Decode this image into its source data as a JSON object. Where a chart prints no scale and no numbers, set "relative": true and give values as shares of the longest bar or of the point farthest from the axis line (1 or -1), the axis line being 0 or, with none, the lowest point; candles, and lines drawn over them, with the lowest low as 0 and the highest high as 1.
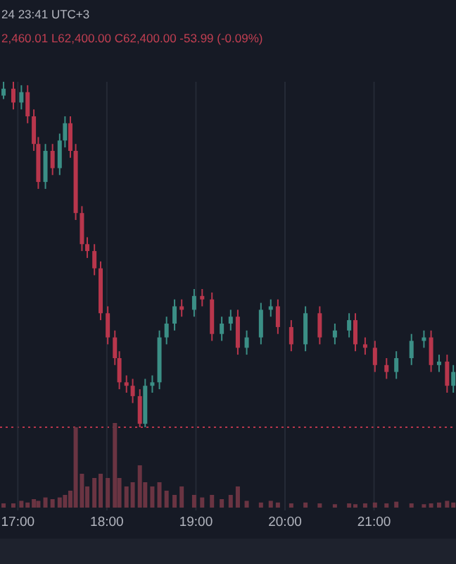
{
  "chart_data": [
    {
      "type": "candlestick",
      "relative": true,
      "grid": "x",
      "tick_labels": false,
      "annotations": [
        "24 23:41 UTC+3",
        "2,460.01 L62,400.00 C62,400.00 -53.99 (-0.09%)"
      ],
      "xlim": [
        16.8,
        21.92
      ],
      "xticks": [
        {
          "value": 17,
          "label": null
        },
        {
          "value": 18,
          "label": null
        },
        {
          "value": 19,
          "label": null
        },
        {
          "value": 20,
          "label": null
        },
        {
          "value": 21,
          "label": null
        }
      ],
      "ref_lines": [
        {
          "axis": "y",
          "value": 0,
          "color": "#b8364c",
          "line_style": "dotted"
        }
      ],
      "x": [
        16.84,
        16.95,
        17.04,
        17.11,
        17.18,
        17.23,
        17.31,
        17.39,
        17.47,
        17.53,
        17.59,
        17.65,
        17.72,
        17.78,
        17.86,
        17.93,
        18.01,
        18.09,
        18.14,
        18.22,
        18.29,
        18.37,
        18.43,
        18.51,
        18.59,
        18.67,
        18.76,
        18.84,
        18.98,
        19.07,
        19.18,
        19.29,
        19.39,
        19.47,
        19.57,
        19.73,
        19.84,
        19.92,
        20.07,
        20.23,
        20.39,
        20.56,
        20.72,
        20.79,
        20.9,
        21.01,
        21.14,
        21.25,
        21.42,
        21.56,
        21.64,
        21.73,
        21.82,
        21.89
      ],
      "ohlc": [
        [
          0.96,
          1.0,
          0.95,
          0.98
        ],
        [
          0.98,
          1.0,
          0.92,
          0.94
        ],
        [
          0.94,
          0.99,
          0.92,
          0.97
        ],
        [
          0.97,
          0.99,
          0.88,
          0.9
        ],
        [
          0.9,
          0.92,
          0.8,
          0.82
        ],
        [
          0.82,
          0.84,
          0.69,
          0.71
        ],
        [
          0.71,
          0.82,
          0.69,
          0.8
        ],
        [
          0.8,
          0.82,
          0.73,
          0.75
        ],
        [
          0.75,
          0.85,
          0.73,
          0.83
        ],
        [
          0.83,
          0.9,
          0.81,
          0.88
        ],
        [
          0.88,
          0.9,
          0.78,
          0.8
        ],
        [
          0.8,
          0.82,
          0.6,
          0.62
        ],
        [
          0.62,
          0.64,
          0.51,
          0.53
        ],
        [
          0.53,
          0.55,
          0.49,
          0.51
        ],
        [
          0.51,
          0.53,
          0.44,
          0.46
        ],
        [
          0.46,
          0.48,
          0.31,
          0.33
        ],
        [
          0.33,
          0.35,
          0.24,
          0.26
        ],
        [
          0.26,
          0.28,
          0.18,
          0.2
        ],
        [
          0.2,
          0.22,
          0.11,
          0.13
        ],
        [
          0.13,
          0.15,
          0.1,
          0.12
        ],
        [
          0.12,
          0.14,
          0.07,
          0.09
        ],
        [
          0.09,
          0.11,
          0.0,
          0.01
        ],
        [
          0.01,
          0.14,
          0.0,
          0.12
        ],
        [
          0.12,
          0.15,
          0.1,
          0.13
        ],
        [
          0.13,
          0.28,
          0.11,
          0.26
        ],
        [
          0.26,
          0.32,
          0.24,
          0.3
        ],
        [
          0.3,
          0.37,
          0.28,
          0.35
        ],
        [
          0.35,
          0.37,
          0.32,
          0.34
        ],
        [
          0.34,
          0.4,
          0.32,
          0.38
        ],
        [
          0.38,
          0.4,
          0.35,
          0.37
        ],
        [
          0.37,
          0.39,
          0.25,
          0.27
        ],
        [
          0.27,
          0.32,
          0.25,
          0.3
        ],
        [
          0.3,
          0.34,
          0.28,
          0.32
        ],
        [
          0.32,
          0.34,
          0.21,
          0.23
        ],
        [
          0.23,
          0.28,
          0.21,
          0.26
        ],
        [
          0.26,
          0.36,
          0.24,
          0.34
        ],
        [
          0.34,
          0.37,
          0.32,
          0.35
        ],
        [
          0.35,
          0.37,
          0.27,
          0.29
        ],
        [
          0.29,
          0.31,
          0.22,
          0.24
        ],
        [
          0.24,
          0.35,
          0.22,
          0.33
        ],
        [
          0.33,
          0.35,
          0.24,
          0.26
        ],
        [
          0.26,
          0.3,
          0.24,
          0.28
        ],
        [
          0.28,
          0.33,
          0.26,
          0.31
        ],
        [
          0.31,
          0.33,
          0.22,
          0.24
        ],
        [
          0.24,
          0.26,
          0.21,
          0.23
        ],
        [
          0.23,
          0.25,
          0.16,
          0.18
        ],
        [
          0.18,
          0.2,
          0.14,
          0.16
        ],
        [
          0.16,
          0.22,
          0.14,
          0.2
        ],
        [
          0.2,
          0.27,
          0.18,
          0.25
        ],
        [
          0.25,
          0.28,
          0.23,
          0.26
        ],
        [
          0.26,
          0.28,
          0.16,
          0.18
        ],
        [
          0.18,
          0.21,
          0.16,
          0.19
        ],
        [
          0.19,
          0.21,
          0.1,
          0.12
        ],
        [
          0.12,
          0.18,
          0.1,
          0.16
        ]
      ],
      "colors": [
        "#3b8f86",
        "#b8364c",
        "#3b8f86",
        "#b8364c",
        "#b8364c",
        "#b8364c",
        "#3b8f86",
        "#b8364c",
        "#3b8f86",
        "#3b8f86",
        "#b8364c",
        "#b8364c",
        "#b8364c",
        "#b8364c",
        "#b8364c",
        "#b8364c",
        "#b8364c",
        "#b8364c",
        "#b8364c",
        "#b8364c",
        "#b8364c",
        "#b8364c",
        "#3b8f86",
        "#3b8f86",
        "#3b8f86",
        "#3b8f86",
        "#3b8f86",
        "#b8364c",
        "#3b8f86",
        "#b8364c",
        "#b8364c",
        "#3b8f86",
        "#3b8f86",
        "#b8364c",
        "#3b8f86",
        "#3b8f86",
        "#3b8f86",
        "#b8364c",
        "#b8364c",
        "#3b8f86",
        "#b8364c",
        "#3b8f86",
        "#3b8f86",
        "#b8364c",
        "#b8364c",
        "#b8364c",
        "#b8364c",
        "#3b8f86",
        "#3b8f86",
        "#3b8f86",
        "#b8364c",
        "#3b8f86",
        "#b8364c",
        "#3b8f86"
      ]
    },
    {
      "type": "bar",
      "relative": true,
      "grid": "x",
      "tick_labels": "x",
      "color": "#6a3442",
      "xlim": [
        16.8,
        21.92
      ],
      "xticks": [
        {
          "value": 17,
          "label": "17:00"
        },
        {
          "value": 18,
          "label": "18:00"
        },
        {
          "value": 19,
          "label": "19:00"
        },
        {
          "value": 20,
          "label": "20:00"
        },
        {
          "value": 21,
          "label": "21:00"
        }
      ],
      "x": [
        16.84,
        16.95,
        17.04,
        17.11,
        17.18,
        17.23,
        17.31,
        17.39,
        17.47,
        17.53,
        17.59,
        17.65,
        17.72,
        17.78,
        17.86,
        17.93,
        18.01,
        18.09,
        18.14,
        18.22,
        18.29,
        18.37,
        18.43,
        18.51,
        18.59,
        18.67,
        18.76,
        18.84,
        18.98,
        19.07,
        19.18,
        19.29,
        19.39,
        19.47,
        19.57,
        19.73,
        19.84,
        19.92,
        20.07,
        20.23,
        20.39,
        20.56,
        20.72,
        20.79,
        20.9,
        21.01,
        21.14,
        21.25,
        21.42,
        21.56,
        21.64,
        21.73,
        21.82,
        21.89
      ],
      "values": [
        0.05,
        0.05,
        0.08,
        0.06,
        0.1,
        0.08,
        0.12,
        0.1,
        0.12,
        0.15,
        0.2,
        0.95,
        0.4,
        0.25,
        0.35,
        0.4,
        0.35,
        1.0,
        0.35,
        0.25,
        0.3,
        0.5,
        0.3,
        0.25,
        0.3,
        0.2,
        0.15,
        0.25,
        0.15,
        0.12,
        0.15,
        0.1,
        0.15,
        0.25,
        0.08,
        0.06,
        0.08,
        0.06,
        0.05,
        0.06,
        0.05,
        0.04,
        0.05,
        0.04,
        0.05,
        0.06,
        0.05,
        0.07,
        0.05,
        0.04,
        0.05,
        0.06,
        0.08,
        0.06
      ]
    }
  ]
}
